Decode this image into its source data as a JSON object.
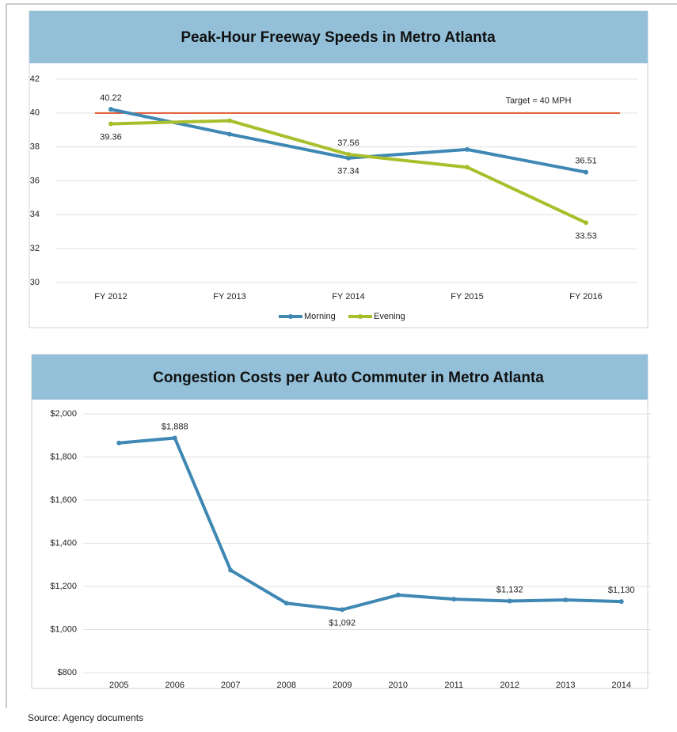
{
  "chart_data": [
    {
      "type": "line",
      "title": "Peak-Hour Freeway Speeds in Metro Atlanta",
      "categories": [
        "FY 2012",
        "FY 2013",
        "FY 2014",
        "FY 2015",
        "FY 2016"
      ],
      "series": [
        {
          "name": "Morning",
          "color": "#3f88b4",
          "values": [
            40.22,
            38.75,
            37.34,
            37.85,
            36.51
          ],
          "value_labels": [
            "40.22",
            null,
            "37.34",
            null,
            "36.51"
          ]
        },
        {
          "name": "Evening",
          "color": "#a8bf2b",
          "values": [
            39.36,
            39.55,
            37.56,
            36.8,
            33.53
          ],
          "value_labels": [
            "39.36",
            null,
            "37.56",
            null,
            "33.53"
          ]
        }
      ],
      "target": {
        "value": 40,
        "label": "Target = 40 MPH",
        "color": "#e0522a"
      },
      "ylim": [
        30,
        42
      ],
      "yticks": [
        30,
        32,
        34,
        36,
        38,
        40,
        42
      ],
      "grid": true,
      "legend": "bottom"
    },
    {
      "type": "line",
      "title": "Congestion Costs per Auto Commuter in Metro Atlanta",
      "categories": [
        "2005",
        "2006",
        "2007",
        "2008",
        "2009",
        "2010",
        "2011",
        "2012",
        "2013",
        "2014"
      ],
      "series": [
        {
          "name": null,
          "color": "#3f88b4",
          "values": [
            1865,
            1888,
            1275,
            1122,
            1092,
            1160,
            1141,
            1132,
            1137,
            1130
          ],
          "value_labels": [
            null,
            "$1,888",
            null,
            null,
            "$1,092",
            null,
            null,
            "$1,132",
            null,
            "$1,130"
          ]
        }
      ],
      "ylim": [
        800,
        2000
      ],
      "yticks": [
        {
          "value": 800,
          "label": "$800"
        },
        {
          "value": 1000,
          "label": "$1,000"
        },
        {
          "value": 1200,
          "label": "$1,200"
        },
        {
          "value": 1400,
          "label": "$1,400"
        },
        {
          "value": 1600,
          "label": "$1,600"
        },
        {
          "value": 1800,
          "label": "$1,800"
        },
        {
          "value": 2000,
          "label": "$2,000"
        }
      ],
      "grid": true
    }
  ],
  "source": "Source: Agency documents"
}
